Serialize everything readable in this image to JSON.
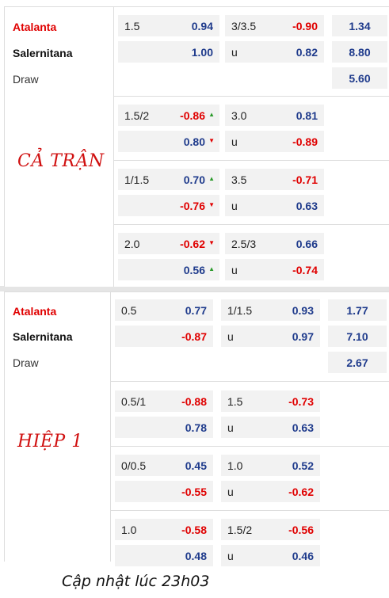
{
  "sections": [
    {
      "title": "CẢ TRẬN",
      "teams": {
        "home": "Atalanta",
        "away": "Salernitana",
        "draw": "Draw"
      },
      "main": {
        "hdp_line": "1.5",
        "hdp_home": "0.94",
        "hdp_away": "1.00",
        "ou_line": "3/3.5",
        "ou_over": "-0.90",
        "ou_under_label": "u",
        "ou_under": "0.82",
        "x12_home": "1.34",
        "x12_away": "8.80",
        "x12_draw": "5.60"
      },
      "alt": [
        {
          "hdp_line": "1.5/2",
          "hdp_home": "-0.86",
          "hdp_home_trend": "up",
          "hdp_away": "0.80",
          "hdp_away_trend": "down",
          "ou_line": "3.0",
          "ou_over": "0.81",
          "ou_under_label": "u",
          "ou_under": "-0.89"
        },
        {
          "hdp_line": "1/1.5",
          "hdp_home": "0.70",
          "hdp_home_trend": "up",
          "hdp_away": "-0.76",
          "hdp_away_trend": "down",
          "ou_line": "3.5",
          "ou_over": "-0.71",
          "ou_under_label": "u",
          "ou_under": "0.63"
        },
        {
          "hdp_line": "2.0",
          "hdp_home": "-0.62",
          "hdp_home_trend": "down",
          "hdp_away": "0.56",
          "hdp_away_trend": "up",
          "ou_line": "2.5/3",
          "ou_over": "0.66",
          "ou_under_label": "u",
          "ou_under": "-0.74"
        }
      ]
    },
    {
      "title": "HIỆP 1",
      "teams": {
        "home": "Atalanta",
        "away": "Salernitana",
        "draw": "Draw"
      },
      "main": {
        "hdp_line": "0.5",
        "hdp_home": "0.77",
        "hdp_away": "-0.87",
        "ou_line": "1/1.5",
        "ou_over": "0.93",
        "ou_under_label": "u",
        "ou_under": "0.97",
        "x12_home": "1.77",
        "x12_away": "7.10",
        "x12_draw": "2.67"
      },
      "alt": [
        {
          "hdp_line": "0.5/1",
          "hdp_home": "-0.88",
          "hdp_away": "0.78",
          "ou_line": "1.5",
          "ou_over": "-0.73",
          "ou_under_label": "u",
          "ou_under": "0.63"
        },
        {
          "hdp_line": "0/0.5",
          "hdp_home": "0.45",
          "hdp_away": "-0.55",
          "ou_line": "1.0",
          "ou_over": "0.52",
          "ou_under_label": "u",
          "ou_under": "-0.62"
        },
        {
          "hdp_line": "1.0",
          "hdp_home": "-0.58",
          "hdp_away": "0.48",
          "ou_line": "1.5/2",
          "ou_over": "-0.56",
          "ou_under_label": "u",
          "ou_under": "0.46"
        }
      ]
    }
  ],
  "footer": "Cập nhật lúc 23h03",
  "colors": {
    "home_team": "#e00000",
    "positive_odds": "#1f3b8c",
    "negative_odds": "#e00000",
    "trend_up": "#2a9a2a",
    "trend_down": "#e00000",
    "section_title": "#d01010"
  }
}
